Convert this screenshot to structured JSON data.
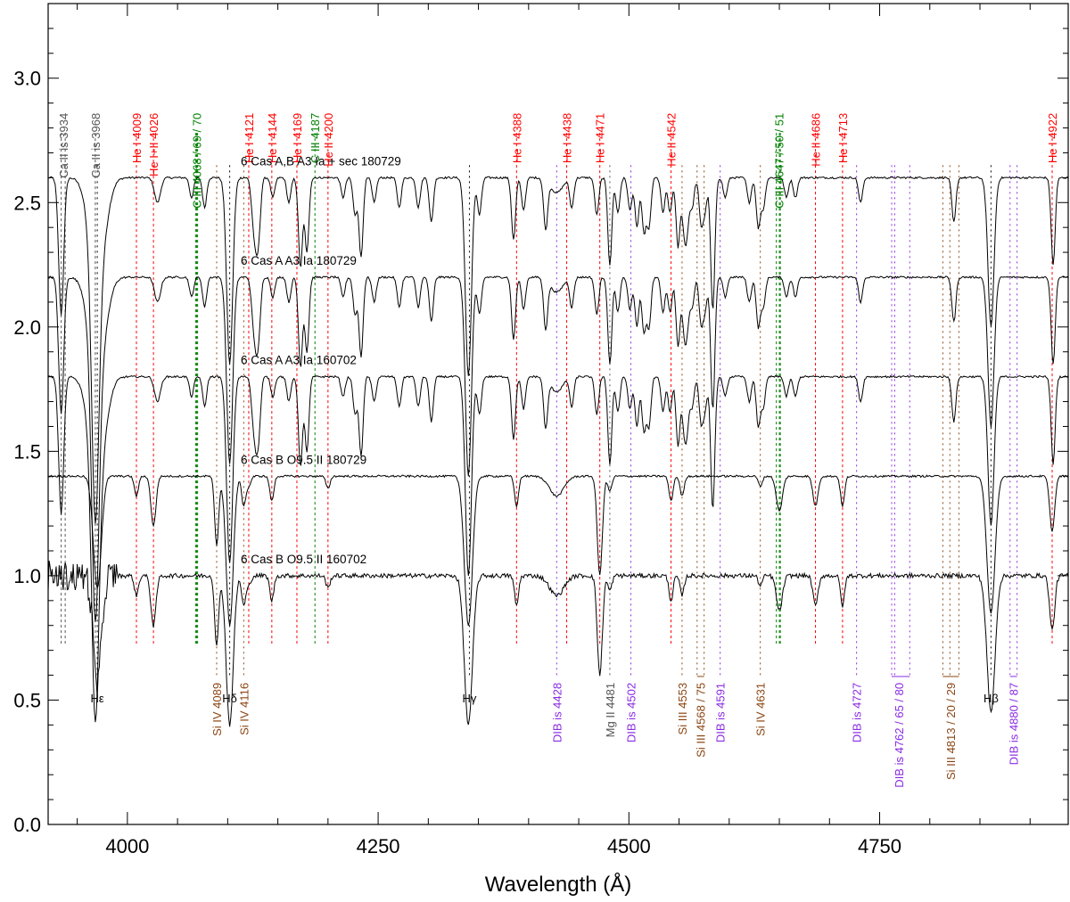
{
  "chart_data": {
    "type": "line",
    "title": "",
    "xlabel": "Wavelength (Å)",
    "ylabel": "",
    "xlim": [
      3921,
      4938
    ],
    "ylim": [
      0.0,
      3.3
    ],
    "xticks": [
      4000,
      4250,
      4500,
      4750
    ],
    "xtick_labels": [
      "4000",
      "4250",
      "4500",
      "4750"
    ],
    "yticks": [
      0.0,
      0.5,
      1.0,
      1.5,
      2.0,
      2.5,
      3.0
    ],
    "ytick_labels": [
      "0.0",
      "0.5",
      "1.0",
      "1.5",
      "2.0",
      "2.5",
      "3.0"
    ],
    "grid": false,
    "colors": {
      "axis": "#000000",
      "spectrum": "#000000",
      "he": "#ff0000",
      "ciii": "#008000",
      "si": "#8b4513",
      "dib": "#8a2be2",
      "hydrogen": "#000000",
      "metal": "#555555"
    },
    "series": [
      {
        "name": "6 Cas A,B  A3 Ia + sec 180729",
        "label": "6 Cas A,B    A3 Ia + sec 180729",
        "offset": 2.6,
        "kind": "A"
      },
      {
        "name": "6 Cas A  A3 Ia 180729",
        "label": "6 Cas A    A3 Ia 180729",
        "offset": 2.2,
        "kind": "A"
      },
      {
        "name": "6 Cas A  A3 Ia 160702",
        "label": "6 Cas A    A3 Ia 160702",
        "offset": 1.8,
        "kind": "A"
      },
      {
        "name": "6 Cas B  O9.5 II 180729",
        "label": "6 Cas B    O9.5 II 180729",
        "offset": 1.4,
        "kind": "B"
      },
      {
        "name": "6 Cas B  O9.5 II 160702",
        "label": "6 Cas B    O9.5 II 160702",
        "offset": 1.0,
        "kind": "B"
      }
    ],
    "top_lines": [
      {
        "label": "Ca II is 3934",
        "wl": [
          3934,
          3938
        ],
        "color": "#555555"
      },
      {
        "label": "Ca II is 3968",
        "wl": [
          3968
        ],
        "color": "#555555"
      },
      {
        "label": "He I 4009",
        "wl": [
          4009
        ],
        "color": "#ff0000"
      },
      {
        "label": "He I+II 4026",
        "wl": [
          4026
        ],
        "color": "#ff0000"
      },
      {
        "label": "C III 4068 / 69 / 70",
        "wl": [
          4068,
          4069,
          4070
        ],
        "color": "#008000"
      },
      {
        "label": "He I 4121",
        "wl": [
          4121
        ],
        "color": "#ff0000"
      },
      {
        "label": "He I 4144",
        "wl": [
          4144
        ],
        "color": "#ff0000"
      },
      {
        "label": "He I 4169",
        "wl": [
          4169
        ],
        "color": "#ff0000"
      },
      {
        "label": "C III 4187",
        "wl": [
          4187
        ],
        "color": "#008000"
      },
      {
        "label": "He II 4200",
        "wl": [
          4200
        ],
        "color": "#ff0000"
      },
      {
        "label": "He I 4388",
        "wl": [
          4388
        ],
        "color": "#ff0000"
      },
      {
        "label": "He I 4438",
        "wl": [
          4438
        ],
        "color": "#ff0000"
      },
      {
        "label": "He I 4471",
        "wl": [
          4471
        ],
        "color": "#ff0000"
      },
      {
        "label": "He II 4542",
        "wl": [
          4542
        ],
        "color": "#ff0000"
      },
      {
        "label": "C III 4647 / 50 / 51",
        "wl": [
          4647,
          4650,
          4651
        ],
        "color": "#008000"
      },
      {
        "label": "He II 4686",
        "wl": [
          4686
        ],
        "color": "#ff0000"
      },
      {
        "label": "He I 4713",
        "wl": [
          4713
        ],
        "color": "#ff0000"
      },
      {
        "label": "He I 4922",
        "wl": [
          4922
        ],
        "color": "#ff0000"
      }
    ],
    "bottom_lines": [
      {
        "label": "Hε",
        "wl": [
          3970
        ],
        "color": "#000000",
        "style": "hydrogen"
      },
      {
        "label": "Si IV 4089",
        "wl": [
          4089
        ],
        "color": "#8b4513"
      },
      {
        "label": "Hδ",
        "wl": [
          4102
        ],
        "color": "#000000",
        "style": "hydrogen"
      },
      {
        "label": "Si IV 4116",
        "wl": [
          4116
        ],
        "color": "#8b4513"
      },
      {
        "label": "Hγ",
        "wl": [
          4341
        ],
        "color": "#000000",
        "style": "hydrogen"
      },
      {
        "label": "DIB is 4428",
        "wl": [
          4428
        ],
        "color": "#8a2be2"
      },
      {
        "label": "Mg II 4481",
        "wl": [
          4481
        ],
        "color": "#555555"
      },
      {
        "label": "DIB is 4502",
        "wl": [
          4502
        ],
        "color": "#8a2be2"
      },
      {
        "label": "Si III 4553",
        "wl": [
          4553
        ],
        "color": "#8b4513"
      },
      {
        "label": "Si III 4568 / 75",
        "wl": [
          4568,
          4575
        ],
        "color": "#8b4513"
      },
      {
        "label": "DIB is 4591",
        "wl": [
          4591
        ],
        "color": "#8a2be2"
      },
      {
        "label": "Si IV 4631",
        "wl": [
          4631
        ],
        "color": "#8b4513"
      },
      {
        "label": "DIB is 4727",
        "wl": [
          4727
        ],
        "color": "#8a2be2"
      },
      {
        "label": "DIB is 4762 / 65 / 80",
        "wl": [
          4762,
          4765,
          4780
        ],
        "color": "#8a2be2"
      },
      {
        "label": "Si III 4813 / 20 / 29",
        "wl": [
          4813,
          4820,
          4829
        ],
        "color": "#8b4513"
      },
      {
        "label": "Hβ",
        "wl": [
          4861
        ],
        "color": "#000000",
        "style": "hydrogen"
      },
      {
        "label": "DIB is 4880 / 87",
        "wl": [
          4880,
          4887
        ],
        "color": "#8a2be2"
      }
    ],
    "absorption_features": {
      "A": [
        [
          3934,
          0.55,
          2.5
        ],
        [
          3968,
          1.0,
          3.5
        ],
        [
          3970,
          0.4,
          8
        ],
        [
          4102,
          0.75,
          3
        ],
        [
          4340,
          0.8,
          3
        ],
        [
          4861,
          0.6,
          3
        ],
        [
          4128,
          0.2,
          2
        ],
        [
          4131,
          0.2,
          2
        ],
        [
          4173,
          0.22,
          2
        ],
        [
          4179,
          0.3,
          2
        ],
        [
          4233,
          0.32,
          2
        ],
        [
          4303,
          0.18,
          2
        ],
        [
          4385,
          0.25,
          2
        ],
        [
          4417,
          0.2,
          2
        ],
        [
          4481,
          0.35,
          2
        ],
        [
          4508,
          0.2,
          2
        ],
        [
          4515,
          0.22,
          2
        ],
        [
          4520,
          0.2,
          2
        ],
        [
          4549,
          0.28,
          2
        ],
        [
          4584,
          0.35,
          2
        ],
        [
          4629,
          0.2,
          2
        ],
        [
          4824,
          0.18,
          2
        ],
        [
          4923,
          0.35,
          2
        ],
        [
          4227,
          0.15,
          2
        ],
        [
          4246,
          0.1,
          2
        ],
        [
          4271,
          0.12,
          2
        ],
        [
          4290,
          0.12,
          2
        ],
        [
          4351,
          0.15,
          2
        ],
        [
          4395,
          0.13,
          2
        ],
        [
          4443,
          0.12,
          2
        ],
        [
          4468,
          0.15,
          2
        ],
        [
          4489,
          0.14,
          2
        ],
        [
          4501,
          0.13,
          2
        ],
        [
          4534,
          0.14,
          2
        ],
        [
          4541,
          0.14,
          2
        ],
        [
          4555,
          0.18,
          2
        ],
        [
          4558,
          0.18,
          2
        ],
        [
          4563,
          0.12,
          2
        ],
        [
          4572,
          0.18,
          2
        ],
        [
          4576,
          0.12,
          2
        ],
        [
          4620,
          0.1,
          2
        ],
        [
          4634,
          0.12,
          2
        ],
        [
          4666,
          0.08,
          2
        ],
        [
          4731,
          0.1,
          2
        ],
        [
          4428,
          0.06,
          6
        ],
        [
          4030,
          0.1,
          3
        ],
        [
          4064,
          0.08,
          2
        ],
        [
          4077,
          0.12,
          2
        ],
        [
          4125,
          0.12,
          2
        ],
        [
          4145,
          0.08,
          2
        ],
        [
          4161,
          0.1,
          2
        ],
        [
          4172,
          0.15,
          2
        ],
        [
          4215,
          0.08,
          2
        ],
        [
          4583,
          0.2,
          2
        ],
        [
          4596,
          0.08,
          2
        ],
        [
          4657,
          0.08,
          2
        ]
      ],
      "B": [
        [
          3970,
          0.45,
          4
        ],
        [
          4102,
          0.6,
          3.5
        ],
        [
          4340,
          0.6,
          4
        ],
        [
          4861,
          0.55,
          4
        ],
        [
          4009,
          0.08,
          2
        ],
        [
          4026,
          0.2,
          2.5
        ],
        [
          4089,
          0.28,
          2
        ],
        [
          4116,
          0.12,
          2
        ],
        [
          4144,
          0.1,
          2
        ],
        [
          4388,
          0.12,
          2
        ],
        [
          4471,
          0.4,
          2.5
        ],
        [
          4481,
          0.06,
          2
        ],
        [
          4542,
          0.1,
          2
        ],
        [
          4553,
          0.08,
          2
        ],
        [
          4686,
          0.12,
          2.5
        ],
        [
          4713,
          0.12,
          2
        ],
        [
          4650,
          0.14,
          3
        ],
        [
          4922,
          0.22,
          2.5
        ],
        [
          4428,
          0.08,
          7
        ],
        [
          4631,
          0.04,
          2
        ],
        [
          4200,
          0.05,
          2
        ],
        [
          4121,
          0.04,
          2
        ]
      ]
    }
  }
}
